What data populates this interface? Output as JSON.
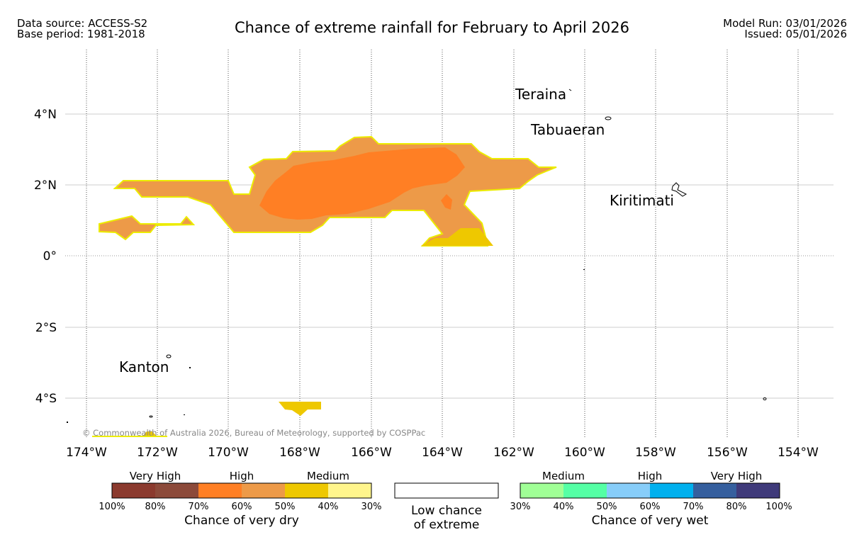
{
  "header": {
    "data_source": "Data source: ACCESS-S2",
    "base_period": "Base period: 1981-2018",
    "title": "Chance of extreme rainfall for February to April 2026",
    "model_run": "Model Run: 03/01/2026",
    "issued": "Issued: 05/01/2026"
  },
  "map": {
    "lat_labels": [
      "4°N",
      "2°N",
      "0°",
      "2°S",
      "4°S"
    ],
    "lon_labels": [
      "174°W",
      "172°W",
      "170°W",
      "168°W",
      "166°W",
      "164°W",
      "162°W",
      "160°W",
      "158°W",
      "156°W",
      "154°W"
    ],
    "places": [
      "Teraina",
      "Tabuaeran",
      "Kiritimati",
      "Kanton"
    ],
    "copyright": "© Commonwealth of Australia 2026, Bureau of Meteorology, supported by COSPPac"
  },
  "legend": {
    "dry": {
      "categories": [
        "Very High",
        "High",
        "Medium"
      ],
      "ticks": [
        "100%",
        "80%",
        "70%",
        "60%",
        "50%",
        "40%",
        "30%"
      ],
      "colors": [
        "#8b3a2e",
        "#8c4a3a",
        "#ff7f24",
        "#ed9a48",
        "#eec800",
        "#fff58c"
      ],
      "caption": "Chance of very dry"
    },
    "neutral": {
      "line1": "Low chance",
      "line2": "of extreme"
    },
    "wet": {
      "categories": [
        "Medium",
        "High",
        "Very High"
      ],
      "ticks": [
        "30%",
        "40%",
        "50%",
        "60%",
        "70%",
        "80%",
        "100%"
      ],
      "colors": [
        "#a0ff96",
        "#55ffa5",
        "#87cdf9",
        "#00b0ee",
        "#355f9e",
        "#3f3a7a"
      ],
      "caption": "Chance of very wet"
    }
  }
}
